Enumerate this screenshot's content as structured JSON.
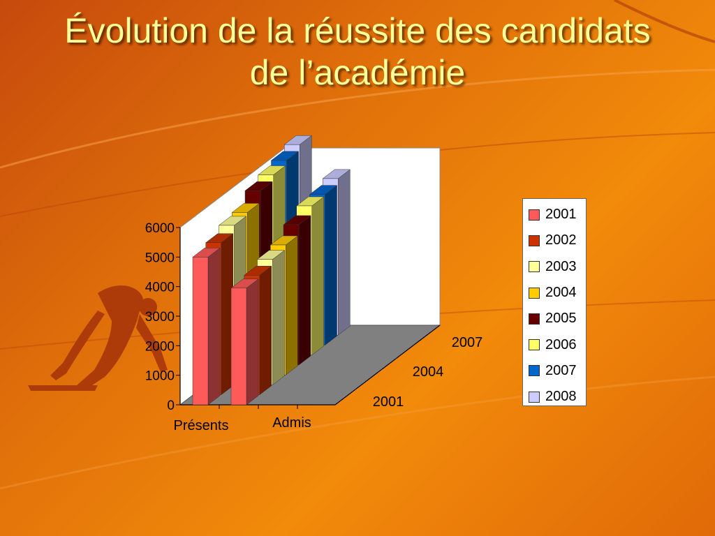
{
  "slide": {
    "title": "Évolution de la réussite des candidats de l’académie",
    "colors": {
      "background": "#e8780a",
      "title": "#ffff99",
      "floor": "#808080"
    }
  },
  "chart_data": {
    "type": "bar",
    "subtype": "3d-clustered",
    "title": "",
    "categories": [
      "Présents",
      "Admis"
    ],
    "ylim": [
      0,
      6000
    ],
    "yticks": [
      0,
      1000,
      2000,
      3000,
      4000,
      5000,
      6000
    ],
    "depth_axis_labels": [
      "2001",
      "2004",
      "2007"
    ],
    "grid": false,
    "legend_position": "right",
    "series": [
      {
        "name": "2001",
        "color": "#ff5a5a",
        "values": [
          5000,
          3950
        ]
      },
      {
        "name": "2002",
        "color": "#cc3300",
        "values": [
          5150,
          4050
        ]
      },
      {
        "name": "2003",
        "color": "#ffff99",
        "values": [
          5400,
          4250
        ]
      },
      {
        "name": "2004",
        "color": "#ffcc00",
        "values": [
          5500,
          4400
        ]
      },
      {
        "name": "2005",
        "color": "#660000",
        "values": [
          5900,
          4750
        ]
      },
      {
        "name": "2006",
        "color": "#ffff66",
        "values": [
          6100,
          5050
        ]
      },
      {
        "name": "2007",
        "color": "#0066cc",
        "values": [
          6250,
          5100
        ]
      },
      {
        "name": "2008",
        "color": "#ccccff",
        "values": [
          6450,
          5300
        ]
      }
    ]
  }
}
